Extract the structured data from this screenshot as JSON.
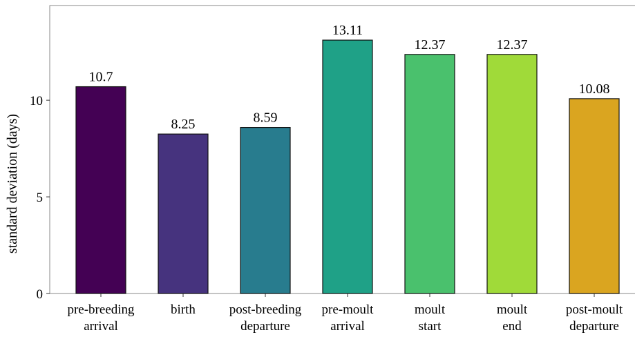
{
  "chart_data": {
    "type": "bar",
    "y_label": "standard deviation (days)",
    "categories": [
      [
        "pre-breeding",
        "arrival"
      ],
      [
        "birth"
      ],
      [
        "post-breeding",
        "departure"
      ],
      [
        "pre-moult",
        "arrival"
      ],
      [
        "moult",
        "start"
      ],
      [
        "moult",
        "end"
      ],
      [
        "post-moult",
        "departure"
      ]
    ],
    "values": [
      10.7,
      8.25,
      8.59,
      13.11,
      12.37,
      12.37,
      10.08
    ],
    "value_labels": [
      "10.7",
      "8.25",
      "8.59",
      "13.11",
      "12.37",
      "12.37",
      "10.08"
    ],
    "colors": [
      "#440154",
      "#46337e",
      "#287c8e",
      "#1fa187",
      "#4ac16d",
      "#a0da39",
      "#daa520"
    ],
    "ylim": [
      0,
      14.9
    ],
    "yticks": [
      0,
      5,
      10
    ],
    "grid": false
  }
}
